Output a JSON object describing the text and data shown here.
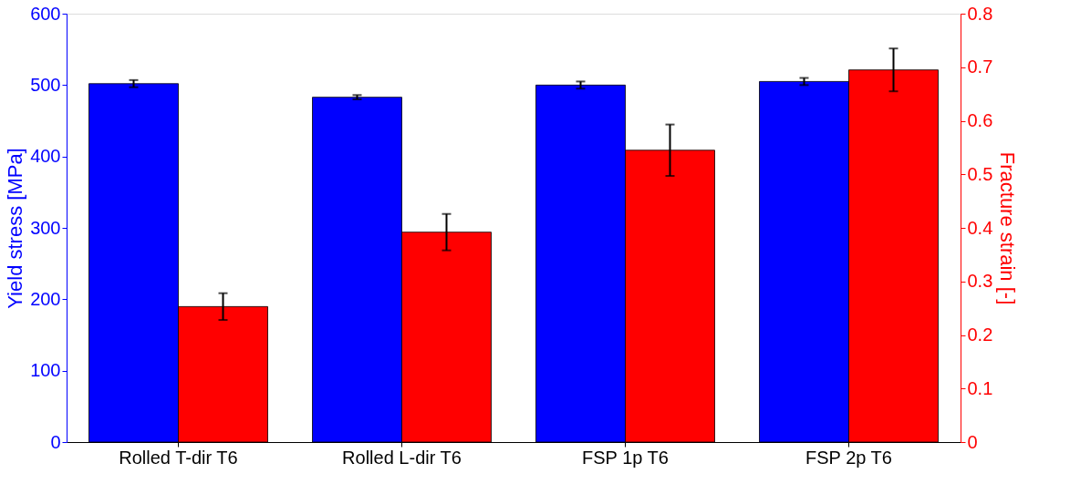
{
  "chart_data": {
    "type": "bar",
    "categories": [
      "Rolled T-dir T6",
      "Rolled L-dir T6",
      "FSP 1p T6",
      "FSP 2p T6"
    ],
    "ylabel": "Yield stress [MPa]",
    "y2label": "Fracture strain [-]",
    "ylim": [
      0,
      600
    ],
    "yticks": [
      0,
      100,
      200,
      300,
      400,
      500,
      600
    ],
    "y2lim": [
      0,
      0.8
    ],
    "y2ticks": [
      0,
      0.1,
      0.2,
      0.3,
      0.4,
      0.5,
      0.6,
      0.7,
      0.8
    ],
    "grid": false,
    "series": [
      {
        "color": "#0000ff",
        "values": [
          502,
          483,
          500,
          505
        ],
        "errors": [
          5,
          3,
          5,
          5
        ]
      },
      {
        "color": "#ff0000",
        "axis": "y2",
        "values": [
          0.253,
          0.392,
          0.545,
          0.695
        ],
        "errors": [
          0.025,
          0.034,
          0.048,
          0.04
        ]
      }
    ]
  }
}
